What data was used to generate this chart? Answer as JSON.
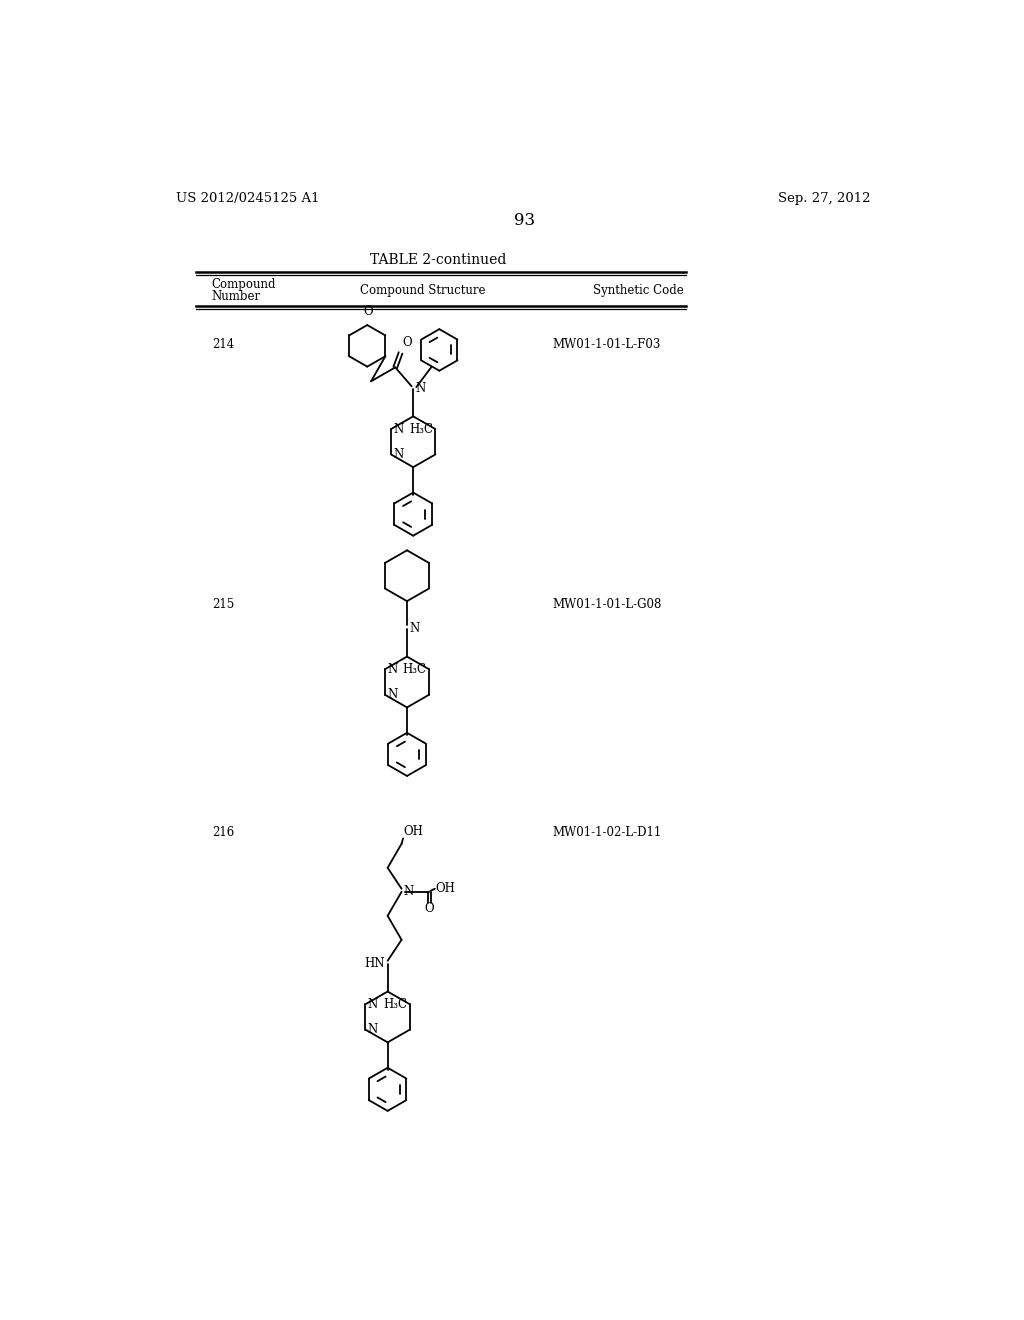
{
  "page_left": "US 2012/0245125 A1",
  "page_right": "Sep. 27, 2012",
  "page_num": "93",
  "table_title": "TABLE 2-continued",
  "col_compound": "Compound",
  "col_number": "Number",
  "col_structure": "Compound Structure",
  "col_code": "Synthetic Code",
  "compounds": [
    {
      "num": "214",
      "code": "MW01-1-01-L-F03",
      "y_label": 242
    },
    {
      "num": "215",
      "code": "MW01-1-01-L-G08",
      "y_label": 580
    },
    {
      "num": "216",
      "code": "MW01-1-02-L-D11",
      "y_label": 875
    }
  ],
  "bg_color": "#ffffff",
  "text_color": "#000000",
  "line_width": 1.3
}
